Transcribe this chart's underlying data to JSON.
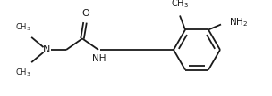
{
  "bg_color": "#ffffff",
  "line_color": "#1a1a1a",
  "line_width": 1.3,
  "font_size": 7.5,
  "figsize": [
    3.04,
    1.08
  ],
  "dpi": 100,
  "xlim": [
    0,
    304
  ],
  "ylim": [
    0,
    108
  ]
}
